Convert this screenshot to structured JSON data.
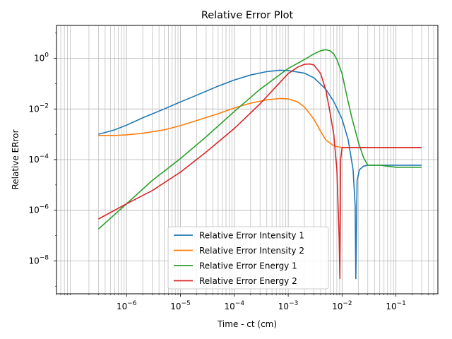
{
  "chart_data": {
    "type": "line",
    "title": "Relative Error Plot",
    "xlabel": "Time - ct (cm)",
    "ylabel": "Relative ERror",
    "xscale": "log",
    "yscale": "log",
    "xlim": [
      5e-08,
      0.6
    ],
    "ylim": [
      5e-10,
      20.0
    ],
    "grid": true,
    "grid_minor_x": true,
    "legend_position": "lower-center",
    "x_ticks": [
      {
        "value": 1e-06,
        "mantissa": "10",
        "exp": "−6"
      },
      {
        "value": 1e-05,
        "mantissa": "10",
        "exp": "−5"
      },
      {
        "value": 0.0001,
        "mantissa": "10",
        "exp": "−4"
      },
      {
        "value": 0.001,
        "mantissa": "10",
        "exp": "−3"
      },
      {
        "value": 0.01,
        "mantissa": "10",
        "exp": "−2"
      },
      {
        "value": 0.1,
        "mantissa": "10",
        "exp": "−1"
      }
    ],
    "y_ticks": [
      {
        "value": 1e-08,
        "mantissa": "10",
        "exp": "−8"
      },
      {
        "value": 1e-06,
        "mantissa": "10",
        "exp": "−6"
      },
      {
        "value": 0.0001,
        "mantissa": "10",
        "exp": "−4"
      },
      {
        "value": 0.01,
        "mantissa": "10",
        "exp": "−2"
      },
      {
        "value": 1,
        "mantissa": "10",
        "exp": "0"
      }
    ],
    "series": [
      {
        "name": "Relative Error Intensity 1",
        "color": "#1f77b4",
        "x": [
          3e-07,
          6e-07,
          1e-06,
          2e-06,
          5e-06,
          1e-05,
          2e-05,
          5e-05,
          0.0001,
          0.0002,
          0.0004,
          0.0007,
          0.001,
          0.002,
          0.003,
          0.005,
          0.007,
          0.01,
          0.013,
          0.016,
          0.0175,
          0.018,
          0.019,
          0.021,
          0.025,
          0.03,
          0.05,
          0.1,
          0.3
        ],
        "y": [
          0.001,
          0.0015,
          0.0023,
          0.0045,
          0.01,
          0.019,
          0.035,
          0.08,
          0.14,
          0.22,
          0.3,
          0.34,
          0.33,
          0.26,
          0.17,
          0.06,
          0.02,
          0.004,
          0.0006,
          4e-05,
          1.5e-06,
          2e-09,
          1.5e-05,
          4e-05,
          5.5e-05,
          6e-05,
          6e-05,
          6e-05,
          6e-05
        ]
      },
      {
        "name": "Relative Error Intensity 2",
        "color": "#ff7f0e",
        "x": [
          3e-07,
          6e-07,
          1e-06,
          2e-06,
          5e-06,
          1e-05,
          2e-05,
          5e-05,
          0.0001,
          0.0002,
          0.0004,
          0.0007,
          0.001,
          0.0015,
          0.002,
          0.003,
          0.004,
          0.005,
          0.007,
          0.009,
          0.012,
          0.02,
          0.05,
          0.1,
          0.3
        ],
        "y": [
          0.0009,
          0.0009,
          0.00095,
          0.0011,
          0.0015,
          0.0022,
          0.0035,
          0.0065,
          0.011,
          0.017,
          0.023,
          0.026,
          0.025,
          0.019,
          0.012,
          0.004,
          0.0013,
          0.0006,
          0.00035,
          0.00031,
          0.0003,
          0.0003,
          0.0003,
          0.0003,
          0.0003
        ]
      },
      {
        "name": "Relative Error Energy 1",
        "color": "#2ca02c",
        "x": [
          3e-07,
          1e-06,
          3e-06,
          1e-05,
          3e-05,
          0.0001,
          0.0003,
          0.001,
          0.002,
          0.003,
          0.004,
          0.005,
          0.006,
          0.007,
          0.008,
          0.01,
          0.012,
          0.015,
          0.02,
          0.025,
          0.03,
          0.05,
          0.1,
          0.2,
          0.3
        ],
        "y": [
          1.8e-07,
          1.8e-06,
          1.5e-05,
          0.00011,
          0.0008,
          0.008,
          0.06,
          0.4,
          0.9,
          1.5,
          2.0,
          2.2,
          2.0,
          1.5,
          0.9,
          0.25,
          0.04,
          0.005,
          0.0005,
          0.00012,
          6e-05,
          6e-05,
          5e-05,
          5e-05,
          5e-05
        ]
      },
      {
        "name": "Relative Error Energy 2",
        "color": "#d62728",
        "x": [
          3e-07,
          1e-06,
          3e-06,
          1e-05,
          3e-05,
          0.0001,
          0.0003,
          0.001,
          0.0015,
          0.002,
          0.0025,
          0.003,
          0.004,
          0.005,
          0.006,
          0.007,
          0.008,
          0.0088,
          0.0091,
          0.0094,
          0.01,
          0.012,
          0.02,
          0.05,
          0.1,
          0.3
        ],
        "y": [
          4.5e-07,
          1.8e-06,
          6e-06,
          3.2e-05,
          0.0002,
          0.0017,
          0.016,
          0.25,
          0.45,
          0.58,
          0.6,
          0.55,
          0.25,
          0.055,
          0.007,
          0.001,
          4e-05,
          1e-07,
          2e-09,
          0.0001,
          0.0003,
          0.0003,
          0.0003,
          0.0003,
          0.0003,
          0.0003
        ]
      }
    ]
  }
}
